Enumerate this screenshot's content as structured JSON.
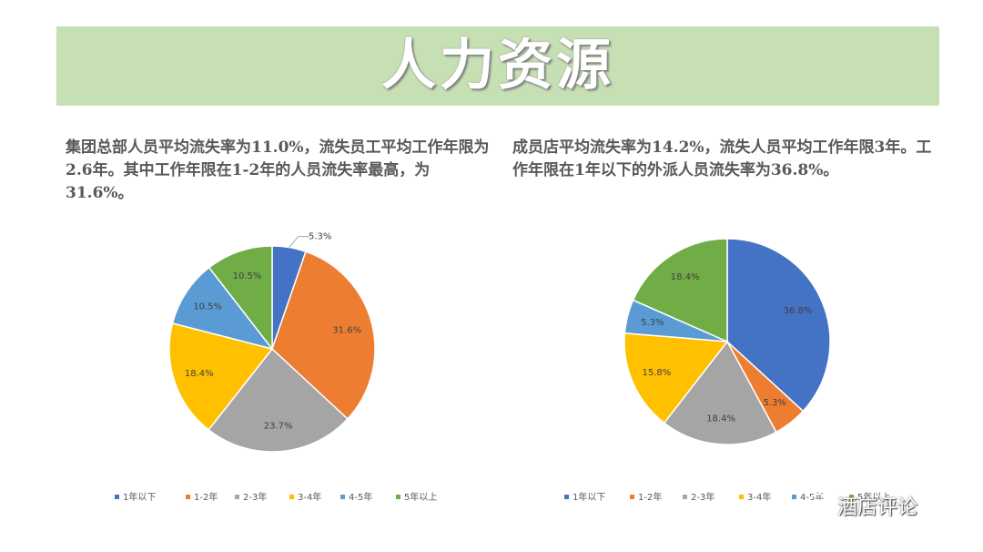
{
  "header": {
    "title": "人力资源"
  },
  "colors": {
    "1年以下": "#4472c4",
    "1-2年": "#ed7d31",
    "2-3年": "#a5a5a5",
    "3-4年": "#ffc000",
    "4-5年": "#5b9bd5",
    "5年以上": "#70ad47"
  },
  "left_panel": {
    "description": "集团总部人员平均流失率为11.0%，流失员工平均工作年限为2.6年。其中工作年限在1-2年的人员流失率最高，为31.6%。"
  },
  "right_panel": {
    "description": "成员店平均流失率为14.2%，流失人员平均工作年限3年。工作年限在1年以下的外派人员流失率为36.8%。"
  },
  "watermark": {
    "text": "酒店评论",
    "icon": "wechat-icon"
  },
  "chart_data": [
    {
      "type": "pie",
      "categories": [
        "1年以下",
        "1-2年",
        "2-3年",
        "3-4年",
        "4-5年",
        "5年以上"
      ],
      "values": [
        5.3,
        31.6,
        23.7,
        18.4,
        10.5,
        10.5
      ],
      "labels": [
        "5.3%",
        "31.6%",
        "23.7%",
        "18.4%",
        "10.5%",
        "10.5%"
      ],
      "legend": "bottom"
    },
    {
      "type": "pie",
      "categories": [
        "1年以下",
        "1-2年",
        "2-3年",
        "3-4年",
        "4-5年",
        "5年以上"
      ],
      "values": [
        36.8,
        5.3,
        18.4,
        15.8,
        5.3,
        18.4
      ],
      "labels": [
        "36.8%",
        "5.3%",
        "18.4%",
        "15.8%",
        "5.3%",
        "18.4%"
      ],
      "legend": "bottom"
    }
  ]
}
